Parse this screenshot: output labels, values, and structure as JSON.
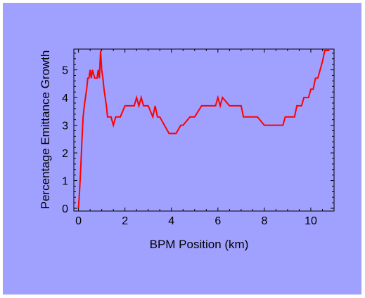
{
  "chart_data": {
    "type": "line",
    "title": "",
    "xlabel": "BPM Position (km)",
    "ylabel": "Percentage Emittance Growth",
    "xlim": [
      -0.2,
      11.0
    ],
    "ylim": [
      -0.1,
      5.75
    ],
    "x_ticks": [
      0,
      2,
      4,
      6,
      8,
      10
    ],
    "x_tick_labels": [
      "0",
      "2",
      "4",
      "6",
      "8",
      "10"
    ],
    "y_ticks": [
      0,
      1,
      2,
      3,
      4,
      5
    ],
    "y_tick_labels": [
      "0",
      "1",
      "2",
      "3",
      "4",
      "5"
    ],
    "grid": false,
    "legend": "none",
    "colors": {
      "background": "#a0a0ff",
      "line": "#ff0000",
      "axis": "#000000"
    },
    "series": [
      {
        "x": [
          0.0,
          0.05,
          0.1,
          0.15,
          0.2,
          0.25,
          0.3,
          0.35,
          0.4,
          0.45,
          0.5,
          0.55,
          0.6,
          0.7,
          0.75,
          0.8,
          0.85,
          0.9,
          0.95,
          1.0,
          1.05,
          1.1,
          1.15,
          1.2,
          1.25,
          1.3,
          1.35,
          1.4,
          1.5,
          1.6,
          1.7,
          1.8,
          2.0,
          2.1,
          2.4,
          2.5,
          2.6,
          2.7,
          2.8,
          3.0,
          3.2,
          3.3,
          3.4,
          3.5,
          3.7,
          3.9,
          4.0,
          4.2,
          4.4,
          4.5,
          4.8,
          5.0,
          5.3,
          5.5,
          5.9,
          6.0,
          6.1,
          6.2,
          6.5,
          7.0,
          7.1,
          7.6,
          7.7,
          8.0,
          8.8,
          8.9,
          9.3,
          9.4,
          9.6,
          9.7,
          9.9,
          10.0,
          10.1,
          10.2,
          10.3,
          10.4,
          10.5,
          10.6,
          10.8
        ],
        "y": [
          0.0,
          0.7,
          1.5,
          2.5,
          3.3,
          3.7,
          4.0,
          4.3,
          4.7,
          4.7,
          5.0,
          4.7,
          5.0,
          4.7,
          4.7,
          4.7,
          5.0,
          4.7,
          5.7,
          5.0,
          4.7,
          4.3,
          4.0,
          3.7,
          3.3,
          3.3,
          3.3,
          3.3,
          3.0,
          3.3,
          3.3,
          3.3,
          3.7,
          3.7,
          3.7,
          4.0,
          3.7,
          4.0,
          3.7,
          3.7,
          3.3,
          3.7,
          3.3,
          3.3,
          3.0,
          2.7,
          2.7,
          2.7,
          3.0,
          3.0,
          3.3,
          3.3,
          3.7,
          3.7,
          3.7,
          4.0,
          3.7,
          4.0,
          3.7,
          3.7,
          3.3,
          3.3,
          3.3,
          3.0,
          3.0,
          3.3,
          3.3,
          3.7,
          3.7,
          4.0,
          4.0,
          4.3,
          4.3,
          4.7,
          4.7,
          5.0,
          5.3,
          5.7,
          5.7
        ]
      }
    ]
  }
}
